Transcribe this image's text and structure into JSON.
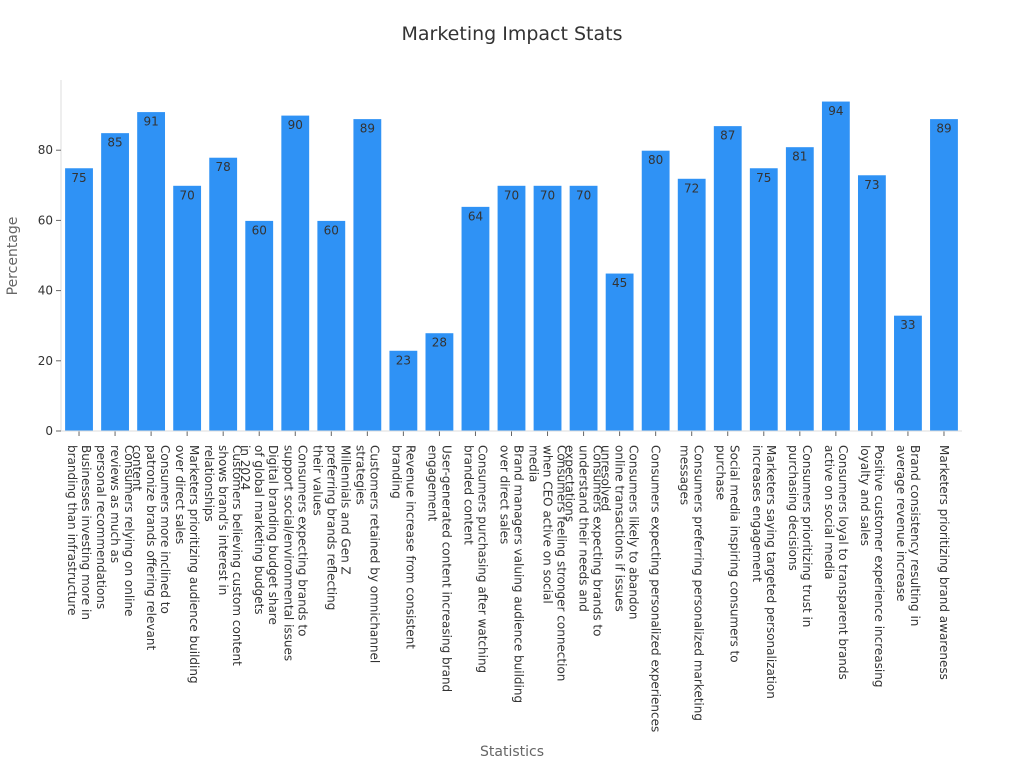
{
  "chart_data": {
    "type": "bar",
    "title": "Marketing Impact Stats",
    "xlabel": "Statistics",
    "ylabel": "Percentage",
    "ylim": [
      0,
      100
    ],
    "y_ticks": [
      0,
      20,
      40,
      60,
      80
    ],
    "grid": false,
    "bar_color": "#2f92f5",
    "categories": [
      [
        "Businesses investing more in",
        "branding than infrastructure"
      ],
      [
        "Consumers relying on online",
        "reviews as much as",
        "personal recommendations"
      ],
      [
        "Consumers more inclined to",
        "patronize brands offering relevant",
        "content"
      ],
      [
        "Marketers prioritizing audience building",
        "over direct sales"
      ],
      [
        "Customers believing custom content",
        "shows brand's interest in",
        "relationships"
      ],
      [
        "Digital branding budget share",
        "of global marketing budgets",
        "in 2024"
      ],
      [
        "Consumers expecting brands to",
        "support social/environmental issues"
      ],
      [
        "Millennials and Gen Z",
        "preferring brands reflecting",
        "their values"
      ],
      [
        "Customers retained by omnichannel",
        "strategies"
      ],
      [
        "Revenue increase from consistent",
        "branding"
      ],
      [
        "User-generated content increasing brand",
        "engagement"
      ],
      [
        "Consumers purchasing after watching",
        "branded content"
      ],
      [
        "Brand managers valuing audience building",
        "over direct sales"
      ],
      [
        "Consumers feeling stronger connection",
        "when CEO active on social",
        "media"
      ],
      [
        "Consumers expecting brands to",
        "understand their needs and",
        "expectations"
      ],
      [
        "Consumers likely to abandon",
        "online transactions if issues",
        "unresolved"
      ],
      [
        "Consumers expecting personalized experiences"
      ],
      [
        "Consumers preferring personalized marketing",
        "messages"
      ],
      [
        "Social media inspiring consumers to",
        "purchase"
      ],
      [
        "Marketers saying targeted personalization",
        "increases engagement"
      ],
      [
        "Consumers prioritizing trust in",
        "purchasing decisions"
      ],
      [
        "Consumers loyal to transparent brands",
        "active on social media"
      ],
      [
        "Positive customer experience increasing",
        "loyalty and sales"
      ],
      [
        "Brand consistency resulting in",
        "average revenue increase"
      ],
      [
        "Marketers prioritizing brand awareness"
      ]
    ],
    "values": [
      75,
      85,
      91,
      70,
      78,
      60,
      90,
      60,
      89,
      23,
      28,
      64,
      70,
      70,
      70,
      45,
      80,
      72,
      87,
      75,
      81,
      94,
      73,
      33,
      89
    ]
  }
}
